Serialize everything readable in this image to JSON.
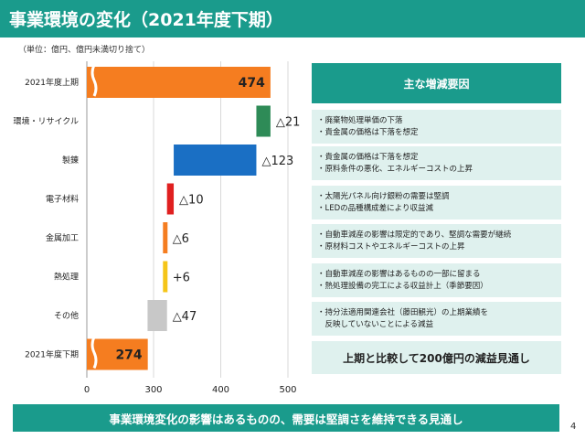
{
  "title": "事業環境の変化（2021年度下期）",
  "unit_note": "（単位：億円、億円未満切り捨て）",
  "chart_data": {
    "type": "bar",
    "subtype": "waterfall",
    "orientation": "horizontal",
    "categories": [
      "2021年度上期",
      "環境・リサイクル",
      "製錬",
      "電子材料",
      "金属加工",
      "熱処理",
      "その他",
      "2021年度下期"
    ],
    "start": [
      0,
      453,
      330,
      320,
      314,
      314,
      273,
      0
    ],
    "end": [
      474,
      474,
      453,
      330,
      320,
      320,
      320,
      274
    ],
    "value_labels": [
      "474",
      "△21",
      "△123",
      "△10",
      "△6",
      "+6",
      "△47",
      "274"
    ],
    "colors": [
      "#f57d20",
      "#2e8b57",
      "#1a6fc4",
      "#e02020",
      "#f57d20",
      "#f5c518",
      "#c8c8c8",
      "#f57d20"
    ],
    "xlim": [
      0,
      500
    ],
    "x_axis_break": true,
    "xticks": [
      "0",
      "300",
      "400",
      "500"
    ],
    "grid": true
  },
  "reasons": {
    "header": "主な増減要因",
    "rows": [
      [
        "・廃棄物処理単価の下落",
        "・貴金属の価格は下落を想定"
      ],
      [
        "・貴金属の価格は下落を想定",
        "・原料条件の悪化、エネルギーコストの上昇"
      ],
      [
        "・太陽光パネル向け銀粉の需要は堅調",
        "・LEDの品種構成差により収益減"
      ],
      [
        "・自動車減産の影響は限定的であり、堅調な需要が継続",
        "・原材料コストやエネルギーコストの上昇"
      ],
      [
        "・自動車減産の影響はあるものの一部に留まる",
        "・熱処理設備の完工による収益計上（季節要因）"
      ],
      [
        "・持分法適用関連会社（藤田観光）の上期業績を",
        "　反映していないことによる減益"
      ]
    ],
    "summary": "上期と比較して200億円の減益見通し"
  },
  "footer": "事業環境変化の影響はあるものの、需要は堅調さを維持できる見通し",
  "page_number": "4"
}
